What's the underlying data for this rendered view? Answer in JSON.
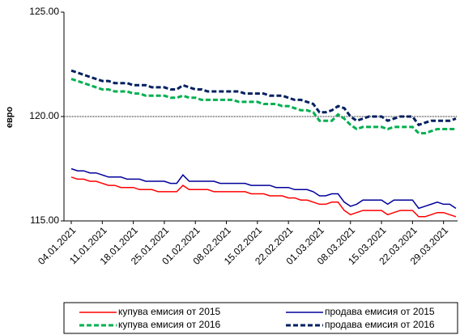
{
  "chart_data": {
    "type": "line",
    "y_label": "евро",
    "categories": [
      "04.01.2021",
      null,
      null,
      null,
      null,
      "11.01.2021",
      null,
      null,
      null,
      null,
      "18.01.2021",
      null,
      null,
      null,
      null,
      "25.01.2021",
      null,
      null,
      null,
      null,
      "01.02.2021",
      null,
      null,
      null,
      null,
      "08.02.2021",
      null,
      null,
      null,
      null,
      "15.02.2021",
      null,
      null,
      null,
      null,
      "22.02.2021",
      null,
      null,
      null,
      null,
      "01.03.2021",
      null,
      null,
      null,
      null,
      "08.03.2021",
      null,
      null,
      null,
      null,
      "15.03.2021",
      null,
      null,
      null,
      null,
      "22.03.2021",
      null,
      null,
      null,
      null,
      "29.03.2021",
      null,
      null
    ],
    "ylim": [
      115,
      125
    ],
    "yticks": [
      {
        "value": 115,
        "label": "115.00"
      },
      {
        "value": 120,
        "label": "120.00"
      },
      {
        "value": 125,
        "label": "125.00"
      }
    ],
    "reference_line": 120,
    "series": [
      {
        "name": "купува емисия от 2015",
        "color": "#ff0000",
        "line_style": "solid",
        "values": [
          117.1,
          117.0,
          117.0,
          116.9,
          116.9,
          116.8,
          116.7,
          116.7,
          116.6,
          116.6,
          116.6,
          116.5,
          116.5,
          116.5,
          116.4,
          116.4,
          116.4,
          116.4,
          116.7,
          116.5,
          116.5,
          116.5,
          116.5,
          116.4,
          116.4,
          116.4,
          116.4,
          116.4,
          116.4,
          116.3,
          116.3,
          116.3,
          116.2,
          116.2,
          116.2,
          116.1,
          116.1,
          116.0,
          116.0,
          115.9,
          115.8,
          115.8,
          115.9,
          115.9,
          115.5,
          115.3,
          115.4,
          115.5,
          115.5,
          115.5,
          115.5,
          115.3,
          115.4,
          115.5,
          115.5,
          115.5,
          115.2,
          115.2,
          115.3,
          115.4,
          115.4,
          115.3,
          115.2
        ]
      },
      {
        "name": "продава емисия от 2015",
        "color": "#000099",
        "line_style": "solid",
        "values": [
          117.5,
          117.4,
          117.4,
          117.3,
          117.3,
          117.2,
          117.1,
          117.1,
          117.1,
          117.0,
          117.0,
          117.0,
          116.9,
          116.9,
          116.9,
          116.9,
          116.8,
          116.8,
          117.2,
          116.9,
          116.9,
          116.9,
          116.9,
          116.9,
          116.8,
          116.8,
          116.8,
          116.8,
          116.8,
          116.7,
          116.7,
          116.7,
          116.7,
          116.6,
          116.6,
          116.6,
          116.5,
          116.5,
          116.5,
          116.4,
          116.2,
          116.2,
          116.3,
          116.3,
          115.9,
          115.7,
          115.8,
          116.0,
          116.0,
          116.0,
          116.0,
          115.8,
          116.0,
          116.0,
          116.0,
          116.0,
          115.6,
          115.7,
          115.8,
          115.9,
          115.8,
          115.8,
          115.6
        ]
      },
      {
        "name": "купува емисия от 2016",
        "color": "#00b050",
        "line_style": "dashed",
        "values": [
          121.8,
          121.7,
          121.6,
          121.5,
          121.4,
          121.3,
          121.3,
          121.2,
          121.2,
          121.2,
          121.1,
          121.1,
          121.0,
          121.0,
          121.0,
          121.0,
          120.9,
          120.9,
          121.0,
          120.9,
          120.9,
          120.8,
          120.8,
          120.8,
          120.8,
          120.8,
          120.8,
          120.7,
          120.7,
          120.7,
          120.7,
          120.6,
          120.6,
          120.6,
          120.5,
          120.5,
          120.4,
          120.3,
          120.3,
          120.2,
          119.8,
          119.8,
          119.8,
          120.1,
          119.9,
          119.6,
          119.4,
          119.5,
          119.5,
          119.5,
          119.5,
          119.4,
          119.5,
          119.5,
          119.5,
          119.5,
          119.2,
          119.2,
          119.3,
          119.4,
          119.4,
          119.4,
          119.4
        ]
      },
      {
        "name": "продава емисия от 2016",
        "color": "#002060",
        "line_style": "dashed",
        "values": [
          122.2,
          122.1,
          122.0,
          121.9,
          121.8,
          121.7,
          121.7,
          121.6,
          121.6,
          121.6,
          121.5,
          121.5,
          121.5,
          121.4,
          121.4,
          121.4,
          121.3,
          121.3,
          121.5,
          121.4,
          121.3,
          121.3,
          121.2,
          121.2,
          121.2,
          121.2,
          121.2,
          121.2,
          121.1,
          121.1,
          121.1,
          121.1,
          121.0,
          121.0,
          121.0,
          120.9,
          120.8,
          120.8,
          120.7,
          120.6,
          120.2,
          120.2,
          120.3,
          120.5,
          120.4,
          120.0,
          119.8,
          119.9,
          120.0,
          120.0,
          120.0,
          119.8,
          119.9,
          120.0,
          120.0,
          120.0,
          119.6,
          119.7,
          119.8,
          119.8,
          119.8,
          119.8,
          119.9
        ]
      }
    ]
  }
}
